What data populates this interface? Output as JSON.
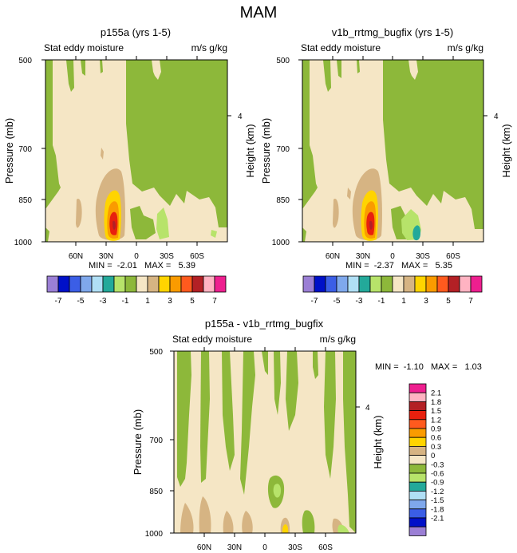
{
  "page_title": "MAM",
  "colors": {
    "green": "#8db83a",
    "tan": "#f5e6c5",
    "darktan": "#d6b483",
    "lightgreen": "#b7e36a",
    "teal": "#23a99a",
    "yellow": "#ffd400",
    "orange": "#fa9b00",
    "red": "#e8200e",
    "darkred": "#b32025"
  },
  "colorbar_main": {
    "colors": [
      "#9b7fd5",
      "#0010c8",
      "#3b5ee6",
      "#7fa8ec",
      "#b0dff5",
      "#23a99a",
      "#b7e36a",
      "#8db83a",
      "#f5e6c5",
      "#d6b483",
      "#ffd400",
      "#fa9b00",
      "#ff5a1e",
      "#b32025",
      "#ffb3c2",
      "#ee1f8f"
    ],
    "labels": [
      "-7",
      "-5",
      "-3",
      "-1",
      "1",
      "3",
      "5",
      "7"
    ]
  },
  "colorbar_diff": {
    "colors": [
      "#ee1f8f",
      "#ffb3c2",
      "#b32025",
      "#e8200e",
      "#ff5a1e",
      "#fa9b00",
      "#ffd400",
      "#d6b483",
      "#f5e6c5",
      "#8db83a",
      "#b7e36a",
      "#23a99a",
      "#b0dff5",
      "#7fa8ec",
      "#3b5ee6",
      "#0010c8",
      "#9b7fd5"
    ],
    "labels": [
      "2.1",
      "1.8",
      "1.5",
      "1.2",
      "0.9",
      "0.6",
      "0.3",
      "0",
      "-0.3",
      "-0.6",
      "-0.9",
      "-1.2",
      "-1.5",
      "-1.8",
      "-2.1"
    ]
  },
  "chart_data": [
    {
      "type": "heatmap",
      "title": "p155a (yrs 1-5)",
      "subtitle_left": "Stat eddy moisture",
      "subtitle_right": "m/s g/kg",
      "ylabel": "Pressure (mb)",
      "ylabel_right": "Height (km)",
      "y_ticks": [
        "500",
        "700",
        "850",
        "1000"
      ],
      "y_right_ticks": [
        "4"
      ],
      "x_ticks": [
        "60N",
        "30N",
        "0",
        "30S",
        "60S"
      ],
      "min_max_text": "MIN =  -2.01   MAX =   5.39",
      "min": -2.01,
      "max": 5.39
    },
    {
      "type": "heatmap",
      "title": "v1b_rrtmg_bugfix (yrs 1-5)",
      "subtitle_left": "Stat eddy moisture",
      "subtitle_right": "m/s g/kg",
      "ylabel": "Pressure (mb)",
      "ylabel_right": "Height (km)",
      "y_ticks": [
        "500",
        "700",
        "850",
        "1000"
      ],
      "y_right_ticks": [
        "4"
      ],
      "x_ticks": [
        "60N",
        "30N",
        "0",
        "30S",
        "60S"
      ],
      "min_max_text": "MIN =  -2.37   MAX =   5.35",
      "min": -2.37,
      "max": 5.35
    },
    {
      "type": "heatmap",
      "title": "p155a - v1b_rrtmg_bugfix",
      "subtitle_left": "Stat eddy moisture",
      "subtitle_right": "m/s g/kg",
      "ylabel": "Pressure (mb)",
      "ylabel_right": "Height (km)",
      "y_ticks": [
        "500",
        "700",
        "850",
        "1000"
      ],
      "y_right_ticks": [
        "4"
      ],
      "x_ticks": [
        "60N",
        "30N",
        "0",
        "30S",
        "60S"
      ],
      "min_max_text": "MIN =  -1.10   MAX =   1.03",
      "min": -1.1,
      "max": 1.03
    }
  ]
}
